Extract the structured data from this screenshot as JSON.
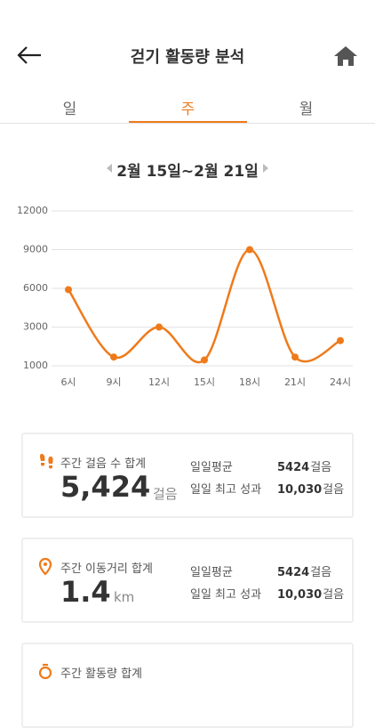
{
  "header": {
    "title": "걷기 활동량 분석"
  },
  "tabs": [
    {
      "label": "일",
      "active": false
    },
    {
      "label": "주",
      "active": true
    },
    {
      "label": "월",
      "active": false
    }
  ],
  "date_range": "2월 15일~2월 21일",
  "chart_data": {
    "type": "line",
    "categories": [
      "6시",
      "9시",
      "12시",
      "15시",
      "18시",
      "21시",
      "24시"
    ],
    "values": [
      5900,
      1450,
      3000,
      1300,
      9000,
      1450,
      2300
    ],
    "color": "#ef7a1a",
    "ylim": [
      1000,
      12000
    ],
    "yticks": [
      1000,
      3000,
      6000,
      9000,
      12000
    ],
    "grid": true
  },
  "cards": [
    {
      "label": "주간 걸음 수 합계",
      "total": "5,424",
      "unit": "걸음",
      "stats": [
        {
          "label": "일일평균",
          "value": "5424",
          "unit": "걸음"
        },
        {
          "label": "일일 최고 성과",
          "value": "10,030",
          "unit": "걸음"
        }
      ]
    },
    {
      "label": "주간 이동거리 합계",
      "total": "1.4",
      "unit": "km",
      "stats": [
        {
          "label": "일일평균",
          "value": "5424",
          "unit": "걸음"
        },
        {
          "label": "일일 최고 성과",
          "value": "10,030",
          "unit": "걸음"
        }
      ]
    },
    {
      "label": "주간 활동량 합계"
    }
  ]
}
